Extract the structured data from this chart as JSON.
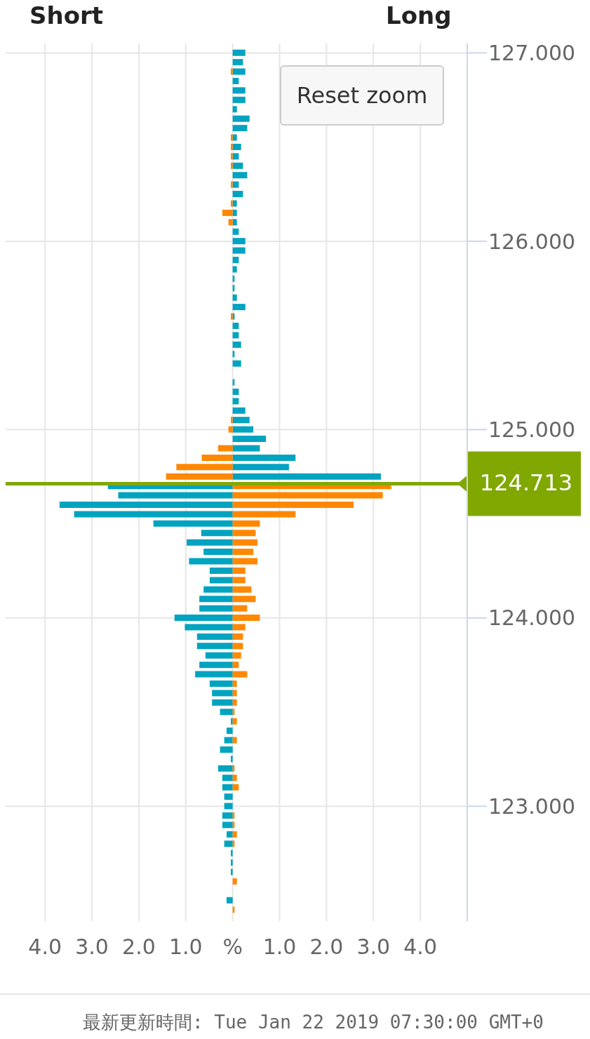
{
  "chart_data": {
    "type": "bar",
    "orientation": "horizontal",
    "stacked": true,
    "x": [
      127.0,
      126.95,
      126.9,
      126.85,
      126.8,
      126.75,
      126.7,
      126.65,
      126.6,
      126.55,
      126.5,
      126.45,
      126.4,
      126.35,
      126.3,
      126.25,
      126.2,
      126.15,
      126.1,
      126.05,
      126.0,
      125.95,
      125.9,
      125.85,
      125.8,
      125.75,
      125.7,
      125.65,
      125.6,
      125.55,
      125.5,
      125.45,
      125.4,
      125.35,
      125.3,
      125.25,
      125.2,
      125.15,
      125.1,
      125.05,
      125.0,
      124.95,
      124.9,
      124.85,
      124.8,
      124.75,
      124.7,
      124.65,
      124.6,
      124.55,
      124.5,
      124.45,
      124.4,
      124.35,
      124.3,
      124.25,
      124.2,
      124.15,
      124.1,
      124.05,
      124.0,
      123.95,
      123.9,
      123.85,
      123.8,
      123.75,
      123.7,
      123.65,
      123.6,
      123.55,
      123.5,
      123.45,
      123.4,
      123.35,
      123.3,
      123.25,
      123.2,
      123.15,
      123.1,
      123.05,
      123.0,
      122.95,
      122.9,
      122.85,
      122.8,
      122.75,
      122.7,
      122.65,
      122.6,
      122.55,
      122.5,
      122.45
    ],
    "series": [
      {
        "color": "#00a3c0",
        "values": [
          0.27,
          0.22,
          0.27,
          0.13,
          0.27,
          0.27,
          0.09,
          0.36,
          0.31,
          0.09,
          0.18,
          0.13,
          0.22,
          0.31,
          0.13,
          0.22,
          0.09,
          0.09,
          0.09,
          0.13,
          0.27,
          0.27,
          0.13,
          0.09,
          0.04,
          0.04,
          0.09,
          0.27,
          0.04,
          0.13,
          0.13,
          0.18,
          0.04,
          0.18,
          null,
          0.04,
          0.13,
          0.13,
          0.27,
          0.36,
          0.44,
          0.71,
          0.58,
          1.34,
          1.2,
          3.16,
          -2.66,
          -2.44,
          -3.69,
          -3.38,
          -1.69,
          -0.67,
          -0.98,
          -0.62,
          -0.93,
          -0.49,
          -0.49,
          -0.62,
          -0.71,
          -0.71,
          -1.24,
          -1.02,
          -0.76,
          -0.76,
          -0.58,
          -0.71,
          -0.8,
          -0.49,
          -0.44,
          -0.44,
          -0.27,
          -0.04,
          -0.13,
          -0.18,
          -0.27,
          -0.04,
          -0.31,
          -0.22,
          -0.22,
          -0.18,
          -0.18,
          -0.22,
          -0.22,
          -0.13,
          -0.18,
          -0.04,
          -0.04,
          -0.04,
          null,
          null,
          -0.13,
          null
        ]
      },
      {
        "color": "#ff8800",
        "values": [
          null,
          null,
          -0.04,
          null,
          null,
          null,
          null,
          null,
          null,
          -0.04,
          -0.04,
          -0.04,
          -0.04,
          null,
          -0.04,
          null,
          -0.04,
          -0.22,
          -0.09,
          null,
          null,
          null,
          null,
          null,
          null,
          null,
          null,
          null,
          -0.04,
          null,
          null,
          null,
          null,
          null,
          null,
          null,
          null,
          null,
          null,
          -0.04,
          -0.09,
          null,
          -0.31,
          -0.66,
          -1.2,
          -1.42,
          3.38,
          3.2,
          2.58,
          1.34,
          0.58,
          0.49,
          0.53,
          0.44,
          0.53,
          0.27,
          0.27,
          0.4,
          0.49,
          0.31,
          0.58,
          0.27,
          0.22,
          0.22,
          0.18,
          0.13,
          0.31,
          0.09,
          0.09,
          0.09,
          0.04,
          0.09,
          null,
          0.09,
          null,
          null,
          0.04,
          0.09,
          0.13,
          null,
          null,
          0.04,
          0.04,
          0.09,
          0.04,
          null,
          null,
          null,
          0.09,
          null,
          null,
          0.04
        ]
      }
    ],
    "xlim": [
      -4.84,
      5.0
    ],
    "xticks": [
      {
        "value": -4,
        "label": "4.0"
      },
      {
        "value": -3,
        "label": "3.0"
      },
      {
        "value": -2,
        "label": "2.0"
      },
      {
        "value": -1,
        "label": "1.0"
      },
      {
        "value": 0,
        "label": "%"
      },
      {
        "value": 1,
        "label": "1.0"
      },
      {
        "value": 2,
        "label": "2.0"
      },
      {
        "value": 3,
        "label": "3.0"
      },
      {
        "value": 4,
        "label": "4.0"
      }
    ],
    "ylim": [
      122.39,
      127.05
    ],
    "yticks": [
      {
        "value": 123,
        "label": "123.000"
      },
      {
        "value": 124,
        "label": "124.000"
      },
      {
        "value": 125,
        "label": "125.000"
      },
      {
        "value": 126,
        "label": "126.000"
      },
      {
        "value": 127,
        "label": "127.000"
      }
    ],
    "grid": true,
    "ref_lines": [
      {
        "axis": "y",
        "value": 124.713,
        "label": "124.713",
        "color": "#80a800"
      }
    ],
    "annotations": [
      "Short",
      "Long",
      "Reset zoom",
      "最新更新時間: Tue Jan 22 2019 07:30:00 GMT+0"
    ]
  }
}
